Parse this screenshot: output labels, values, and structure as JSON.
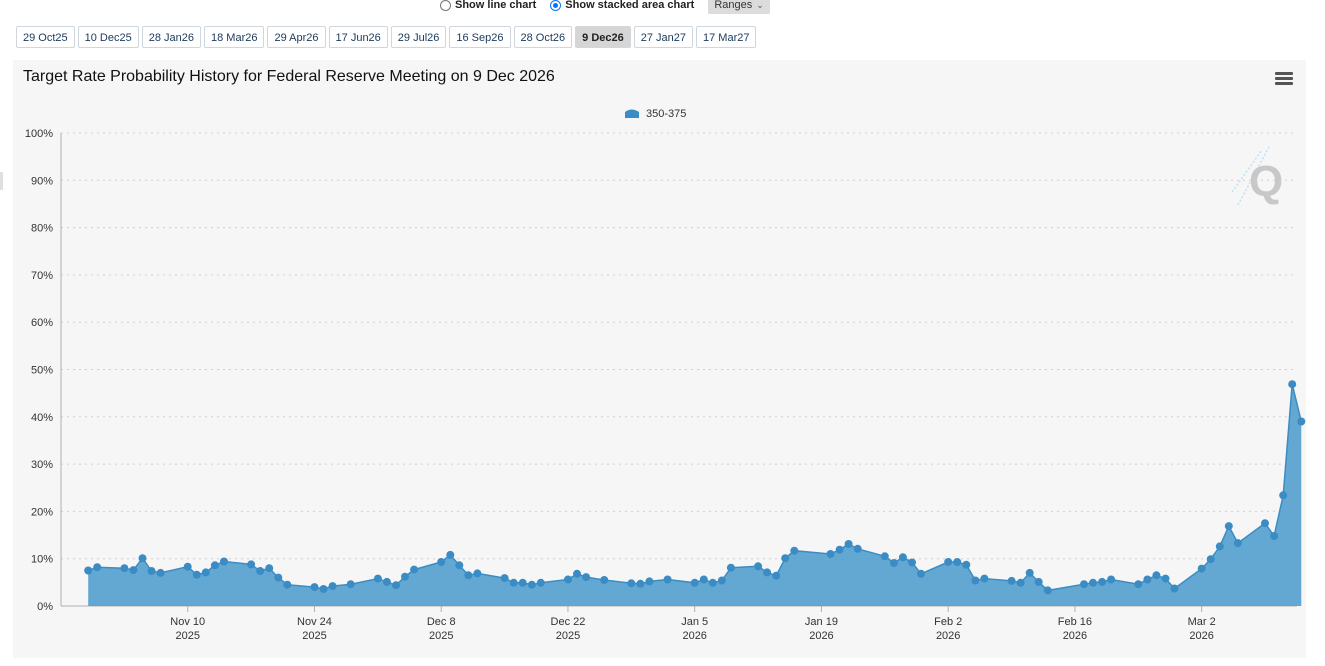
{
  "controls": {
    "line_chart_label": "Show line chart",
    "stacked_area_label": "Show stacked area chart",
    "ranges_label": "Ranges",
    "selected_view": "stacked_area"
  },
  "meeting_tabs": [
    {
      "label": "29 Oct25",
      "active": false
    },
    {
      "label": "10 Dec25",
      "active": false
    },
    {
      "label": "28 Jan26",
      "active": false
    },
    {
      "label": "18 Mar26",
      "active": false
    },
    {
      "label": "29 Apr26",
      "active": false
    },
    {
      "label": "17 Jun26",
      "active": false
    },
    {
      "label": "29 Jul26",
      "active": false
    },
    {
      "label": "16 Sep26",
      "active": false
    },
    {
      "label": "28 Oct26",
      "active": false
    },
    {
      "label": "9 Dec26",
      "active": true
    },
    {
      "label": "27 Jan27",
      "active": false
    },
    {
      "label": "17 Mar27",
      "active": false
    }
  ],
  "chart_title": "Target Rate Probability History for Federal Reserve Meeting on 9 Dec 2026",
  "colors": {
    "series": "#3b8cc4",
    "area": "#5ba3d0",
    "panel": "#f6f6f6"
  },
  "chart_data": {
    "type": "area",
    "title": "Target Rate Probability History for Federal Reserve Meeting on 9 Dec 2026",
    "xlabel": "",
    "ylabel": "",
    "ylim": [
      0,
      100
    ],
    "y_unit": "%",
    "y_ticks": [
      "0%",
      "10%",
      "20%",
      "30%",
      "40%",
      "50%",
      "60%",
      "70%",
      "80%",
      "90%",
      "100%"
    ],
    "x_ticks": [
      {
        "date": "2025-11-10",
        "line1": "Nov 10",
        "line2": "2025"
      },
      {
        "date": "2025-11-24",
        "line1": "Nov 24",
        "line2": "2025"
      },
      {
        "date": "2025-12-08",
        "line1": "Dec 8",
        "line2": "2025"
      },
      {
        "date": "2025-12-22",
        "line1": "Dec 22",
        "line2": "2025"
      },
      {
        "date": "2026-01-05",
        "line1": "Jan 5",
        "line2": "2026"
      },
      {
        "date": "2026-01-19",
        "line1": "Jan 19",
        "line2": "2026"
      },
      {
        "date": "2026-02-02",
        "line1": "Feb 2",
        "line2": "2026"
      },
      {
        "date": "2026-02-16",
        "line1": "Feb 16",
        "line2": "2026"
      },
      {
        "date": "2026-03-02",
        "line1": "Mar 2",
        "line2": "2026"
      }
    ],
    "grid": true,
    "legend_position": "top-center",
    "series": [
      {
        "name": "350-375",
        "points": [
          [
            "2025-10-30",
            7.5
          ],
          [
            "2025-10-31",
            8.2
          ],
          [
            "2025-11-03",
            8.0
          ],
          [
            "2025-11-04",
            7.6
          ],
          [
            "2025-11-05",
            10.1
          ],
          [
            "2025-11-06",
            7.4
          ],
          [
            "2025-11-07",
            7.0
          ],
          [
            "2025-11-10",
            8.3
          ],
          [
            "2025-11-11",
            6.6
          ],
          [
            "2025-11-12",
            7.1
          ],
          [
            "2025-11-13",
            8.6
          ],
          [
            "2025-11-14",
            9.4
          ],
          [
            "2025-11-17",
            8.8
          ],
          [
            "2025-11-18",
            7.4
          ],
          [
            "2025-11-19",
            8.0
          ],
          [
            "2025-11-20",
            6.0
          ],
          [
            "2025-11-21",
            4.5
          ],
          [
            "2025-11-24",
            4.0
          ],
          [
            "2025-11-25",
            3.6
          ],
          [
            "2025-11-26",
            4.2
          ],
          [
            "2025-11-28",
            4.6
          ],
          [
            "2025-12-01",
            5.8
          ],
          [
            "2025-12-02",
            5.1
          ],
          [
            "2025-12-03",
            4.4
          ],
          [
            "2025-12-04",
            6.2
          ],
          [
            "2025-12-05",
            7.7
          ],
          [
            "2025-12-08",
            9.3
          ],
          [
            "2025-12-09",
            10.8
          ],
          [
            "2025-12-10",
            8.6
          ],
          [
            "2025-12-11",
            6.5
          ],
          [
            "2025-12-12",
            6.9
          ],
          [
            "2025-12-15",
            5.9
          ],
          [
            "2025-12-16",
            4.9
          ],
          [
            "2025-12-17",
            4.9
          ],
          [
            "2025-12-18",
            4.5
          ],
          [
            "2025-12-19",
            4.9
          ],
          [
            "2025-12-22",
            5.6
          ],
          [
            "2025-12-23",
            6.8
          ],
          [
            "2025-12-24",
            6.1
          ],
          [
            "2025-12-26",
            5.5
          ],
          [
            "2025-12-29",
            4.8
          ],
          [
            "2025-12-30",
            4.7
          ],
          [
            "2025-12-31",
            5.2
          ],
          [
            "2026-01-02",
            5.6
          ],
          [
            "2026-01-05",
            4.9
          ],
          [
            "2026-01-06",
            5.6
          ],
          [
            "2026-01-07",
            4.9
          ],
          [
            "2026-01-08",
            5.4
          ],
          [
            "2026-01-09",
            8.1
          ],
          [
            "2026-01-12",
            8.4
          ],
          [
            "2026-01-13",
            7.1
          ],
          [
            "2026-01-14",
            6.4
          ],
          [
            "2026-01-15",
            10.1
          ],
          [
            "2026-01-16",
            11.7
          ],
          [
            "2026-01-20",
            11.0
          ],
          [
            "2026-01-21",
            11.9
          ],
          [
            "2026-01-22",
            13.1
          ],
          [
            "2026-01-23",
            12.1
          ],
          [
            "2026-01-26",
            10.5
          ],
          [
            "2026-01-27",
            9.1
          ],
          [
            "2026-01-28",
            10.3
          ],
          [
            "2026-01-29",
            9.2
          ],
          [
            "2026-01-30",
            6.8
          ],
          [
            "2026-02-02",
            9.3
          ],
          [
            "2026-02-03",
            9.3
          ],
          [
            "2026-02-04",
            8.7
          ],
          [
            "2026-02-05",
            5.4
          ],
          [
            "2026-02-06",
            5.8
          ],
          [
            "2026-02-09",
            5.3
          ],
          [
            "2026-02-10",
            4.9
          ],
          [
            "2026-02-11",
            7.0
          ],
          [
            "2026-02-12",
            5.1
          ],
          [
            "2026-02-13",
            3.3
          ],
          [
            "2026-02-17",
            4.6
          ],
          [
            "2026-02-18",
            4.9
          ],
          [
            "2026-02-19",
            5.1
          ],
          [
            "2026-02-20",
            5.6
          ],
          [
            "2026-02-23",
            4.6
          ],
          [
            "2026-02-24",
            5.6
          ],
          [
            "2026-02-25",
            6.5
          ],
          [
            "2026-02-26",
            5.8
          ],
          [
            "2026-02-27",
            3.7
          ],
          [
            "2026-03-02",
            7.9
          ],
          [
            "2026-03-03",
            9.9
          ],
          [
            "2026-03-04",
            12.6
          ],
          [
            "2026-03-05",
            16.9
          ],
          [
            "2026-03-06",
            13.3
          ],
          [
            "2026-03-09",
            17.5
          ],
          [
            "2026-03-10",
            14.8
          ],
          [
            "2026-03-11",
            23.4
          ],
          [
            "2026-03-12",
            46.9
          ],
          [
            "2026-03-13",
            39.0
          ]
        ]
      }
    ]
  }
}
